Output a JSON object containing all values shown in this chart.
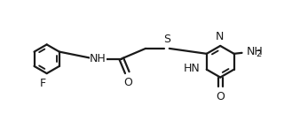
{
  "bg_color": "#ffffff",
  "line_color": "#1a1a1a",
  "line_width": 1.6,
  "font_size": 9.0,
  "font_size_sub": 7.0,
  "xlim": [
    0,
    6.8
  ],
  "ylim": [
    -0.1,
    1.15
  ]
}
